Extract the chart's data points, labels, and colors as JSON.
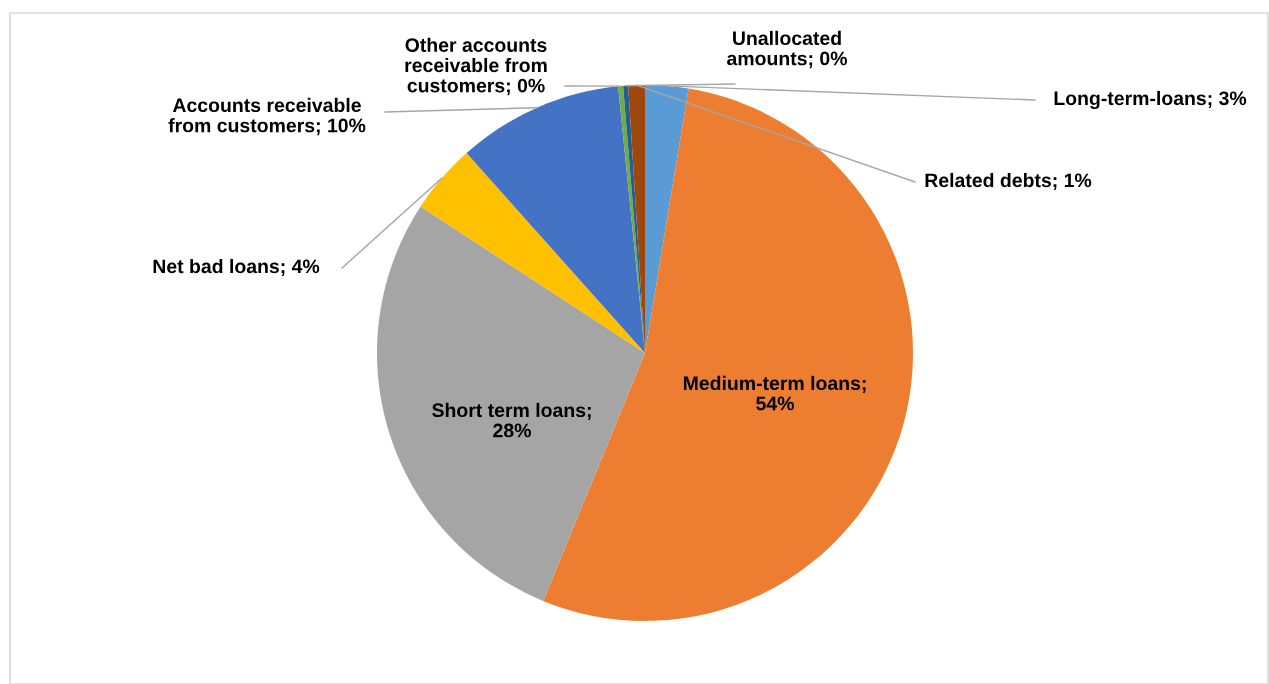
{
  "chart_data": {
    "type": "pie",
    "categories": [
      "Long-term-loans; 3%",
      "Medium-term loans; 54%",
      "Short term loans; 28%",
      "Net bad loans; 4%",
      "Accounts receivable from customers; 10%",
      "Other accounts receivable from customers; 0%",
      "Unallocated amounts; 0%",
      "Related debts; 1%"
    ],
    "values": [
      2.6,
      53.6,
      28.0,
      4.2,
      10.0,
      0.3,
      0.3,
      1.0
    ],
    "colors": [
      "#5b9bd5",
      "#ed7d31",
      "#a5a5a5",
      "#ffc000",
      "#4472c4",
      "#70ad47",
      "#255e91",
      "#9e480e"
    ]
  }
}
